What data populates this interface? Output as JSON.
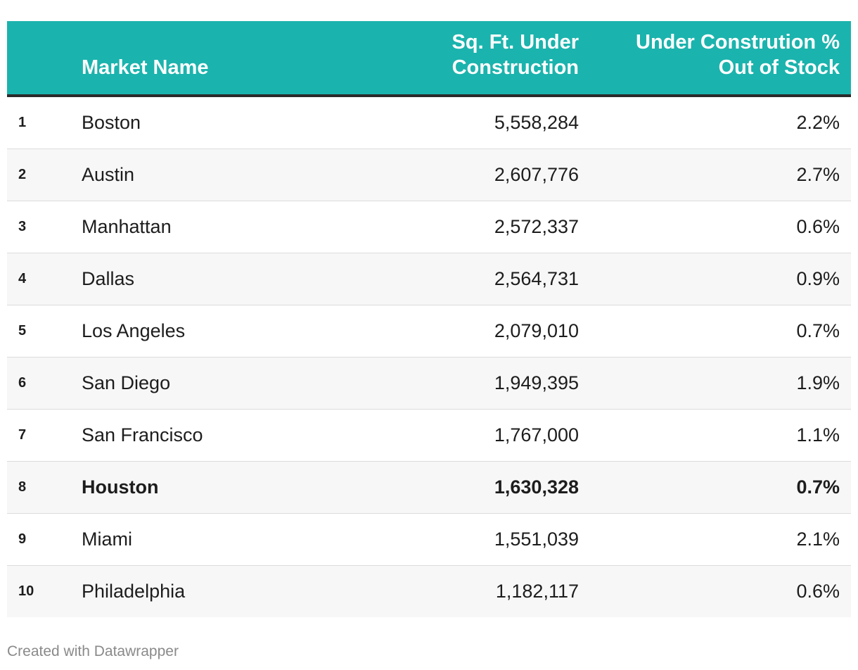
{
  "chart_data": {
    "type": "table",
    "columns": [
      "",
      "Market Name",
      "Sq. Ft. Under\nConstruction",
      "Under Constrution %\nOut of Stock"
    ],
    "rows": [
      {
        "rank": "1",
        "market": "Boston",
        "sqft": "5,558,284",
        "pct": "2.2%",
        "highlight": false
      },
      {
        "rank": "2",
        "market": "Austin",
        "sqft": "2,607,776",
        "pct": "2.7%",
        "highlight": false
      },
      {
        "rank": "3",
        "market": "Manhattan",
        "sqft": "2,572,337",
        "pct": "0.6%",
        "highlight": false
      },
      {
        "rank": "4",
        "market": "Dallas",
        "sqft": "2,564,731",
        "pct": "0.9%",
        "highlight": false
      },
      {
        "rank": "5",
        "market": "Los Angeles",
        "sqft": "2,079,010",
        "pct": "0.7%",
        "highlight": false
      },
      {
        "rank": "6",
        "market": "San Diego",
        "sqft": "1,949,395",
        "pct": "1.9%",
        "highlight": false
      },
      {
        "rank": "7",
        "market": "San Francisco",
        "sqft": "1,767,000",
        "pct": "1.1%",
        "highlight": false
      },
      {
        "rank": "8",
        "market": "Houston",
        "sqft": "1,630,328",
        "pct": "0.7%",
        "highlight": true
      },
      {
        "rank": "9",
        "market": "Miami",
        "sqft": "1,551,039",
        "pct": "2.1%",
        "highlight": false
      },
      {
        "rank": "10",
        "market": "Philadelphia",
        "sqft": "1,182,117",
        "pct": "0.6%",
        "highlight": false
      }
    ]
  },
  "colors": {
    "header_background": "#1bb3ad",
    "header_text": "#ffffff",
    "alternate_row": "#f7f7f7"
  },
  "footer": {
    "credit": "Created with Datawrapper"
  }
}
